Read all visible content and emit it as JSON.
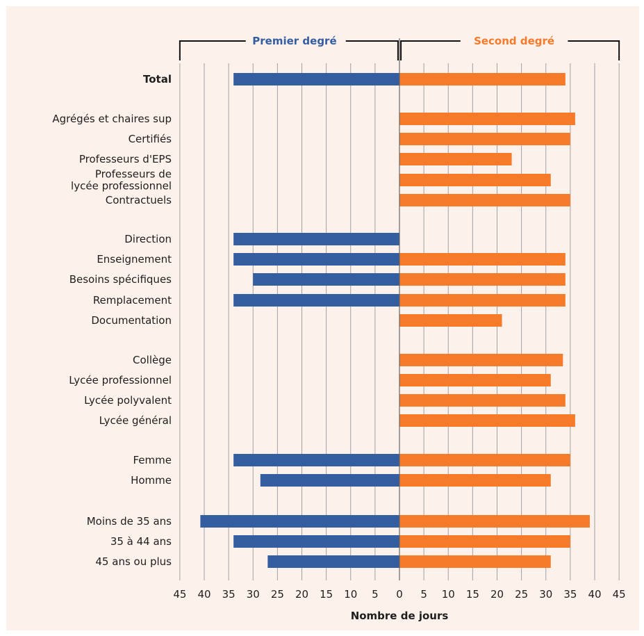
{
  "colors": {
    "premier": "#355ea0",
    "second": "#f57a29",
    "grid": "#a0a0a0",
    "text": "#1e1e1e",
    "panel_bg": "#fdf1ec"
  },
  "chart_data": {
    "type": "bar",
    "orientation": "horizontal",
    "layout": "diverging",
    "xlabel": "Nombre de jours",
    "xlim": [
      -45,
      45
    ],
    "ticks": [
      45,
      40,
      35,
      30,
      25,
      20,
      15,
      10,
      5,
      0,
      5,
      10,
      15,
      20,
      25,
      30,
      35,
      40,
      45
    ],
    "grid": true,
    "groups": [
      {
        "name": "Premier degré",
        "side": "left",
        "color": "#355ea0"
      },
      {
        "name": "Second degré",
        "side": "right",
        "color": "#f57a29"
      }
    ],
    "categories": [
      {
        "label": [
          "Total"
        ],
        "bold": true,
        "premier": 34,
        "second": 34
      },
      {
        "label": [
          "Agrégés et chaires sup"
        ],
        "premier": null,
        "second": 36
      },
      {
        "label": [
          "Certifiés"
        ],
        "premier": null,
        "second": 35
      },
      {
        "label": [
          "Professeurs d'EPS"
        ],
        "premier": null,
        "second": 23
      },
      {
        "label": [
          "Professeurs de",
          "lycée professionnel"
        ],
        "premier": null,
        "second": 31
      },
      {
        "label": [
          "Contractuels"
        ],
        "premier": null,
        "second": 35
      },
      {
        "label": [
          "Direction"
        ],
        "premier": 34,
        "second": null
      },
      {
        "label": [
          "Enseignement"
        ],
        "premier": 34,
        "second": 34
      },
      {
        "label": [
          "Besoins spécifiques"
        ],
        "premier": 30,
        "second": 34
      },
      {
        "label": [
          "Remplacement"
        ],
        "premier": 34,
        "second": 34
      },
      {
        "label": [
          "Documentation"
        ],
        "premier": null,
        "second": 21
      },
      {
        "label": [
          "Collège"
        ],
        "premier": null,
        "second": 33.5
      },
      {
        "label": [
          "Lycée professionnel"
        ],
        "premier": null,
        "second": 31
      },
      {
        "label": [
          "Lycée polyvalent"
        ],
        "premier": null,
        "second": 34
      },
      {
        "label": [
          "Lycée général"
        ],
        "premier": null,
        "second": 36
      },
      {
        "label": [
          "Femme"
        ],
        "premier": 34,
        "second": 35
      },
      {
        "label": [
          "Homme"
        ],
        "premier": 28.5,
        "second": 31
      },
      {
        "label": [
          "Moins de 35 ans"
        ],
        "premier": 40.8,
        "second": 39
      },
      {
        "label": [
          "35 à 44 ans"
        ],
        "premier": 34,
        "second": 35
      },
      {
        "label": [
          "45 ans ou plus"
        ],
        "premier": 27,
        "second": 31
      }
    ]
  }
}
